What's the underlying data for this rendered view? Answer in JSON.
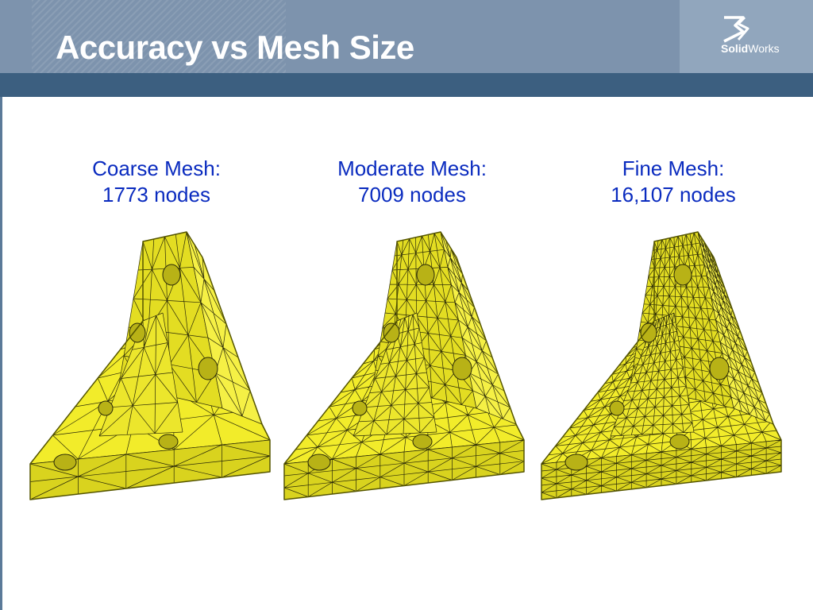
{
  "slide": {
    "title": "Accuracy vs Mesh Size",
    "logo": {
      "brand_bold": "Solid",
      "brand_regular": "Works",
      "icon": "3ds-logo-icon"
    },
    "colors": {
      "header": "#7d93ad",
      "header_band": "#3c5f80",
      "caption_text": "#0a2bbf",
      "mesh_fill": "#f2ec2a",
      "mesh_lines": "#2a2a08"
    }
  },
  "meshes": [
    {
      "label": "Coarse Mesh:",
      "nodes": "1773 nodes"
    },
    {
      "label": "Moderate Mesh:",
      "nodes": "7009 nodes"
    },
    {
      "label": "Fine Mesh:",
      "nodes": "16,107 nodes"
    }
  ]
}
